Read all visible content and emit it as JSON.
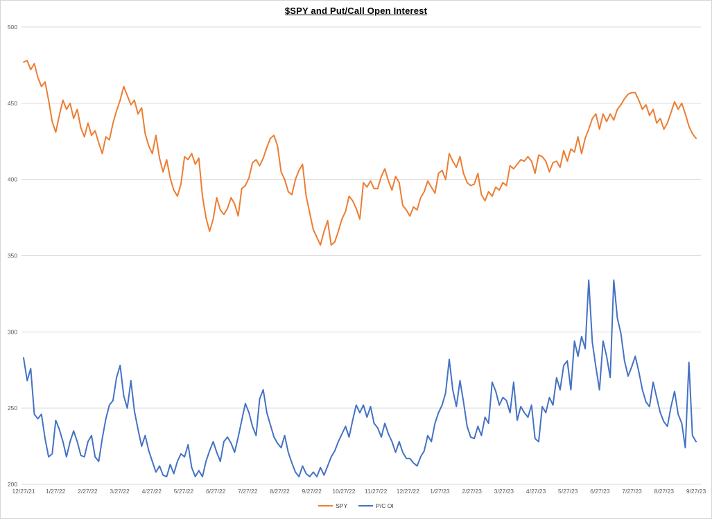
{
  "chart_data": {
    "type": "line",
    "title": "$SPY and Put/Call Open Interest",
    "xlabel": "",
    "ylabel": "",
    "ylim": [
      200,
      500
    ],
    "y_ticks": [
      500,
      450,
      400,
      350,
      300,
      250,
      200
    ],
    "grid": "horizontal-only",
    "legend_position": "bottom-center",
    "x_tick_labels": [
      "12/27/21",
      "1/27/22",
      "2/27/22",
      "3/27/22",
      "4/27/22",
      "5/27/22",
      "6/27/22",
      "7/27/22",
      "8/27/22",
      "9/27/22",
      "10/27/22",
      "11/27/22",
      "12/27/22",
      "1/27/23",
      "2/27/23",
      "3/27/23",
      "4/27/23",
      "5/27/23",
      "6/27/23",
      "7/27/23",
      "8/27/23",
      "9/27/23"
    ],
    "series": [
      {
        "name": "SPY",
        "color": "#ED7D31",
        "values": [
          477,
          478,
          472,
          476,
          467,
          461,
          464,
          452,
          438,
          431,
          442,
          452,
          446,
          450,
          440,
          446,
          434,
          428,
          437,
          429,
          432,
          424,
          417,
          428,
          426,
          437,
          445,
          452,
          461,
          455,
          449,
          452,
          443,
          447,
          430,
          422,
          417,
          429,
          414,
          405,
          413,
          401,
          393,
          389,
          397,
          415,
          413,
          417,
          410,
          414,
          389,
          375,
          366,
          374,
          388,
          380,
          377,
          381,
          388,
          384,
          376,
          394,
          396,
          401,
          411,
          413,
          409,
          414,
          421,
          427,
          429,
          422,
          405,
          400,
          392,
          390,
          400,
          406,
          410,
          389,
          378,
          367,
          362,
          357,
          366,
          373,
          357,
          359,
          366,
          374,
          379,
          389,
          386,
          381,
          374,
          398,
          395,
          399,
          394,
          394,
          402,
          407,
          399,
          393,
          402,
          398,
          383,
          380,
          376,
          382,
          380,
          388,
          392,
          399,
          395,
          391,
          404,
          406,
          400,
          417,
          412,
          408,
          415,
          404,
          398,
          396,
          397,
          404,
          390,
          386,
          392,
          389,
          395,
          393,
          398,
          396,
          409,
          407,
          410,
          413,
          412,
          415,
          412,
          404,
          416,
          415,
          412,
          405,
          411,
          412,
          408,
          419,
          412,
          420,
          418,
          428,
          417,
          427,
          433,
          440,
          443,
          433,
          443,
          438,
          443,
          439,
          446,
          449,
          453,
          456,
          457,
          457,
          452,
          446,
          449,
          442,
          446,
          437,
          440,
          433,
          437,
          444,
          451,
          446,
          450,
          443,
          435,
          430,
          427
        ]
      },
      {
        "name": "P/C OI",
        "color": "#4472C4",
        "values": [
          283,
          268,
          276,
          246,
          243,
          246,
          230,
          218,
          220,
          242,
          236,
          228,
          218,
          228,
          235,
          228,
          219,
          218,
          228,
          232,
          218,
          215,
          230,
          243,
          252,
          255,
          270,
          278,
          258,
          250,
          268,
          248,
          236,
          225,
          232,
          222,
          215,
          208,
          212,
          206,
          205,
          213,
          207,
          215,
          220,
          218,
          226,
          211,
          205,
          209,
          205,
          215,
          222,
          228,
          221,
          215,
          228,
          231,
          227,
          221,
          231,
          242,
          253,
          247,
          238,
          232,
          256,
          262,
          247,
          239,
          231,
          227,
          224,
          232,
          221,
          214,
          208,
          205,
          212,
          207,
          205,
          208,
          205,
          211,
          206,
          212,
          218,
          222,
          228,
          233,
          238,
          231,
          242,
          252,
          247,
          252,
          244,
          251,
          240,
          237,
          231,
          240,
          233,
          228,
          221,
          228,
          221,
          217,
          217,
          214,
          212,
          218,
          222,
          232,
          228,
          240,
          247,
          252,
          260,
          282,
          262,
          251,
          268,
          254,
          238,
          231,
          230,
          238,
          232,
          244,
          240,
          267,
          261,
          252,
          257,
          255,
          247,
          267,
          242,
          251,
          247,
          244,
          252,
          230,
          228,
          251,
          247,
          257,
          252,
          270,
          262,
          278,
          281,
          262,
          294,
          284,
          297,
          289,
          334,
          293,
          277,
          262,
          294,
          284,
          270,
          334,
          309,
          299,
          281,
          271,
          277,
          284,
          274,
          262,
          254,
          251,
          267,
          257,
          247,
          241,
          238,
          251,
          261,
          246,
          240,
          224,
          280,
          232,
          228
        ]
      }
    ]
  },
  "colors": {
    "background": "#FFFFFF",
    "frame_border": "#D5D5D5",
    "gridline": "#D9D9D9",
    "axis_label": "#595959",
    "legend_text": "#404040",
    "title_text": "#000000",
    "spy_line": "#ED7D31",
    "pcoi_line": "#4472C4"
  }
}
